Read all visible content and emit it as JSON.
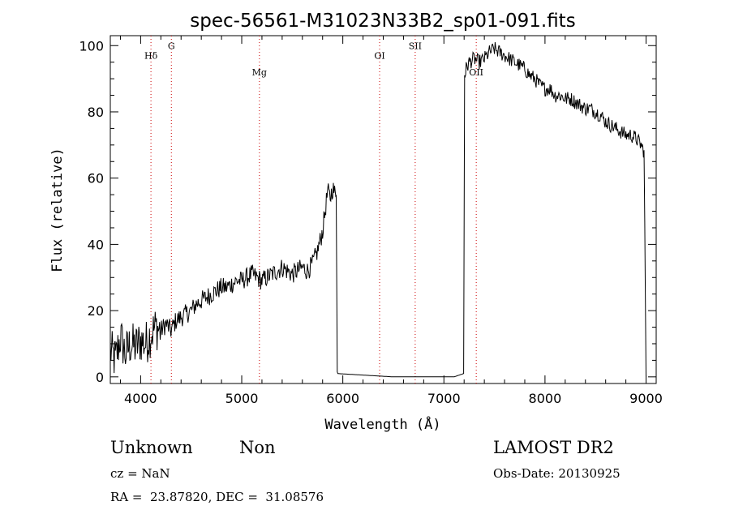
{
  "chart_data": {
    "type": "line",
    "title": "spec-56561-M31023N33B2_sp01-091.fits",
    "xlabel": "Wavelength (Å)",
    "ylabel": "Flux (relative)",
    "xlim": [
      3700,
      9100
    ],
    "ylim": [
      -2,
      103
    ],
    "xticks": [
      4000,
      5000,
      6000,
      7000,
      8000,
      9000
    ],
    "yticks": [
      0,
      20,
      40,
      60,
      80,
      100
    ],
    "grid": false,
    "line_color": "#000000",
    "marker_color": "#cc0000",
    "lines": [
      {
        "label": "Hδ",
        "x": 4102,
        "y_label": 96
      },
      {
        "label": "G",
        "x": 4304,
        "y_label": 99
      },
      {
        "label": "Mg",
        "x": 5175,
        "y_label": 91
      },
      {
        "label": "OI",
        "x": 6364,
        "y_label": 96
      },
      {
        "label": "SII",
        "x": 6716,
        "y_label": 99
      },
      {
        "label": "OII",
        "x": 7320,
        "y_label": 91
      }
    ],
    "series": [
      {
        "x": [
          3700,
          3750,
          3800,
          3850,
          3900,
          3950,
          4000,
          4050,
          4100,
          4150,
          4200,
          4250,
          4300,
          4350,
          4400,
          4450,
          4500,
          4550,
          4600,
          4650,
          4700,
          4750,
          4800,
          4850,
          4900,
          4950,
          5000,
          5050,
          5100,
          5150,
          5200,
          5250,
          5300,
          5350,
          5400,
          5450,
          5500,
          5550,
          5600,
          5650,
          5700,
          5750,
          5800,
          5825,
          5850,
          5875,
          5900,
          5925,
          5935,
          5945,
          6500,
          7100,
          7195,
          7205,
          7220,
          7250,
          7300,
          7350,
          7400,
          7450,
          7500,
          7550,
          7600,
          7650,
          7700,
          7750,
          7800,
          7850,
          7900,
          7950,
          8000,
          8050,
          8100,
          8150,
          8200,
          8250,
          8300,
          8350,
          8400,
          8450,
          8500,
          8550,
          8600,
          8650,
          8700,
          8750,
          8800,
          8850,
          8900,
          8950,
          8980,
          9000
        ],
        "y": [
          8,
          5,
          12,
          7,
          10,
          9,
          11,
          10,
          13,
          15,
          14,
          16,
          14,
          17,
          18,
          19,
          20,
          22,
          23,
          24,
          25,
          26,
          27,
          27,
          28,
          29,
          29,
          30,
          31,
          30,
          29,
          30,
          31,
          32,
          33,
          32,
          31,
          32,
          33,
          32,
          34,
          38,
          44,
          50,
          56,
          54,
          57,
          55,
          57,
          1,
          0,
          0,
          1,
          91,
          93,
          95,
          96,
          95,
          96,
          98,
          99,
          98,
          97,
          96,
          95,
          94,
          93,
          91,
          90,
          88,
          87,
          87,
          85,
          85,
          84,
          84,
          83,
          82,
          81,
          81,
          80,
          79,
          77,
          76,
          75,
          74,
          73,
          73,
          72,
          70,
          68,
          0
        ]
      }
    ]
  },
  "info": {
    "object_class": "Unknown",
    "subclass": "Non",
    "survey": "LAMOST DR2",
    "redshift": "cz = NaN",
    "obs_date": "Obs-Date: 20130925",
    "coords": "RA =  23.87820, DEC =  31.08576"
  }
}
